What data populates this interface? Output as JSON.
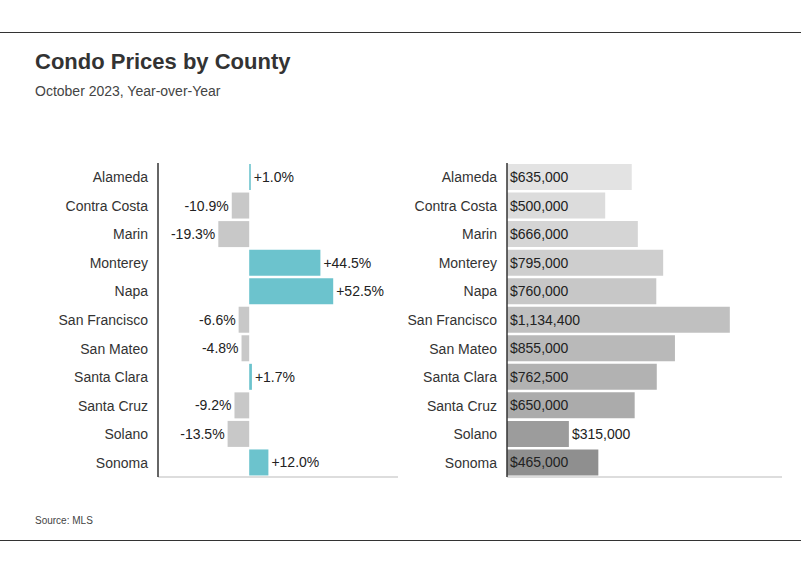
{
  "chart_data": [
    {
      "type": "bar",
      "title": "Condo Prices by County",
      "subtitle": "October 2023, Year-over-Year",
      "source": "Source: MLS",
      "orientation": "horizontal",
      "categories": [
        "Alameda",
        "Contra Costa",
        "Marin",
        "Monterey",
        "Napa",
        "San Francisco",
        "San Mateo",
        "Santa Clara",
        "Santa Cruz",
        "Solano",
        "Sonoma"
      ],
      "values": [
        1.0,
        -10.9,
        -19.3,
        44.5,
        52.5,
        -6.6,
        -4.8,
        1.7,
        -9.2,
        -13.5,
        12.0
      ],
      "value_labels": [
        "+1.0%",
        "-10.9%",
        "-19.3%",
        "+44.5%",
        "+52.5%",
        "-6.6%",
        "-4.8%",
        "+1.7%",
        "-9.2%",
        "-13.5%",
        "+12.0%"
      ],
      "data_labels": true,
      "colors": [
        "#6cc3cd",
        "#c8c8c8",
        "#c8c8c8",
        "#6cc3cd",
        "#6cc3cd",
        "#c8c8c8",
        "#c8c8c8",
        "#6cc3cd",
        "#c8c8c8",
        "#c8c8c8",
        "#6cc3cd"
      ],
      "xlim": [
        -57,
        93
      ],
      "tick_labels": "y"
    },
    {
      "type": "bar",
      "orientation": "horizontal",
      "categories": [
        "Alameda",
        "Contra Costa",
        "Marin",
        "Monterey",
        "Napa",
        "San Francisco",
        "San Mateo",
        "Santa Clara",
        "Santa Cruz",
        "Solano",
        "Sonoma"
      ],
      "values": [
        635000,
        500000,
        666000,
        795000,
        760000,
        1134400,
        855000,
        762500,
        650000,
        315000,
        465000
      ],
      "value_labels": [
        "$635,000",
        "$500,000",
        "$666,000",
        "$795,000",
        "$760,000",
        "$1,134,400",
        "$855,000",
        "$762,500",
        "$650,000",
        "$315,000",
        "$465,000"
      ],
      "data_labels": true,
      "colors": [
        "#e3e3e3",
        "#dcdcdc",
        "#d5d5d5",
        "#cecece",
        "#c7c7c7",
        "#c0c0c0",
        "#b9b9b9",
        "#b2b2b2",
        "#ababab",
        "#9c9c9c",
        "#8f8f8f"
      ],
      "xlim": [
        0,
        1400000
      ],
      "tick_labels": "y"
    }
  ]
}
